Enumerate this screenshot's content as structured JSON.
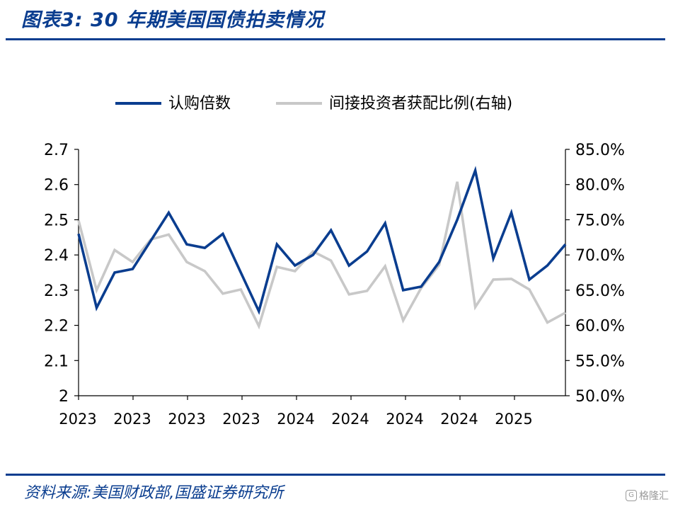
{
  "header": {
    "title": "图表3:  30 年期美国国债拍卖情况"
  },
  "footer": {
    "source": "资料来源:美国财政部,国盛证券研究所",
    "watermark_icon": "g-logo-icon",
    "watermark": "格隆汇"
  },
  "colors": {
    "primary_series": "#0a3d8f",
    "secondary_series": "#c8c8c8",
    "brand": "#0a3d8f"
  },
  "chart_data": {
    "type": "line",
    "title": "",
    "x_tick_labels": [
      "2023",
      "2023",
      "2023",
      "2023",
      "2024",
      "2024",
      "2024",
      "2024",
      "2025"
    ],
    "series": [
      {
        "name": "认购倍数",
        "axis": "left",
        "values": [
          2.46,
          2.25,
          2.35,
          2.36,
          2.44,
          2.52,
          2.43,
          2.42,
          2.46,
          2.35,
          2.24,
          2.43,
          2.37,
          2.4,
          2.47,
          2.37,
          2.41,
          2.49,
          2.3,
          2.31,
          2.38,
          2.5,
          2.64,
          2.39,
          2.52,
          2.33,
          2.37,
          2.43
        ]
      },
      {
        "name": "间接投资者获配比例(右轴)",
        "axis": "right",
        "values": [
          0.749,
          0.65,
          0.707,
          0.69,
          0.722,
          0.729,
          0.69,
          0.677,
          0.645,
          0.651,
          0.599,
          0.683,
          0.677,
          0.705,
          0.692,
          0.644,
          0.649,
          0.684,
          0.607,
          0.653,
          0.686,
          0.804,
          0.626,
          0.665,
          0.666,
          0.651,
          0.604,
          0.618
        ]
      }
    ],
    "y_left": {
      "ylim": [
        2.0,
        2.7
      ],
      "ticks": [
        2.7,
        2.6,
        2.5,
        2.4,
        2.3,
        2.2,
        2.1,
        2.0
      ],
      "tick_labels": [
        "2.7",
        "2.6",
        "2.5",
        "2.4",
        "2.3",
        "2.2",
        "2.1",
        "2"
      ]
    },
    "y_right": {
      "ylim": [
        0.5,
        0.85
      ],
      "ticks": [
        0.85,
        0.8,
        0.75,
        0.7,
        0.65,
        0.6,
        0.55,
        0.5
      ],
      "tick_labels": [
        "85.0%",
        "80.0%",
        "75.0%",
        "70.0%",
        "65.0%",
        "60.0%",
        "55.0%",
        "50.0%"
      ]
    },
    "grid": false,
    "legend_position": "top-center"
  }
}
